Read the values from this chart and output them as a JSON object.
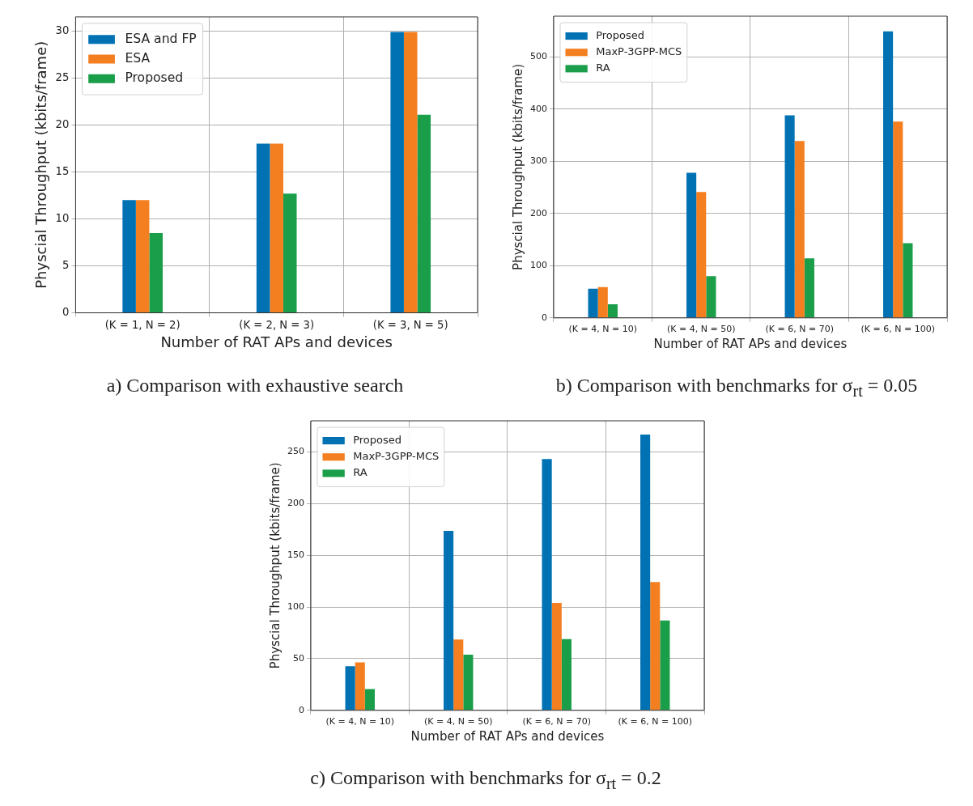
{
  "chart_data": [
    {
      "type": "bar",
      "title": "a) Comparison with exhaustive search",
      "xlabel": "Number of RAT APs and devices",
      "ylabel": "Physcial Throughput (kbits/frame)",
      "categories": [
        "(K = 1, N = 2)",
        "(K = 2, N = 3)",
        "(K = 3, N = 5)"
      ],
      "series": [
        {
          "name": "ESA and FP",
          "color": "#0072b4",
          "values": [
            12,
            18,
            29.9
          ]
        },
        {
          "name": "ESA",
          "color": "#f47f20",
          "values": [
            12,
            18,
            29.9
          ]
        },
        {
          "name": "Proposed",
          "color": "#1a9e4a",
          "values": [
            8.5,
            12.7,
            21.1
          ]
        }
      ],
      "ylim": [
        0,
        31.5
      ],
      "yticks": [
        0,
        5,
        10,
        15,
        20,
        25,
        30
      ],
      "grid": true,
      "legend": "top left"
    },
    {
      "type": "bar",
      "title": "b) Comparison with benchmarks for σ$_{rt}$ = 0.05",
      "xlabel": "Number of RAT APs and devices",
      "ylabel": "Physcial Throughput (kbits/frame)",
      "categories": [
        "(K = 4, N = 10)",
        "(K = 4, N = 50)",
        "(K = 6, N = 70)",
        "(K = 6, N = 100)"
      ],
      "series": [
        {
          "name": "Proposed",
          "color": "#0072b4",
          "values": [
            56,
            278,
            388,
            549
          ]
        },
        {
          "name": "MaxP-3GPP-MCS",
          "color": "#f47f20",
          "values": [
            59,
            241,
            339,
            376
          ]
        },
        {
          "name": "RA",
          "color": "#1a9e4a",
          "values": [
            26,
            80,
            114,
            143
          ]
        }
      ],
      "ylim": [
        0,
        578
      ],
      "yticks": [
        0,
        100,
        200,
        300,
        400,
        500
      ],
      "grid": true,
      "legend": "top left"
    },
    {
      "type": "bar",
      "title": "c) Comparison with benchmarks for σ$_{rt}$ = 0.2",
      "xlabel": "Number of RAT APs and devices",
      "ylabel": "Physcial Throughput (kbits/frame)",
      "categories": [
        "(K = 4, N = 10)",
        "(K = 4, N = 50)",
        "(K = 6, N = 70)",
        "(K = 6, N = 100)"
      ],
      "series": [
        {
          "name": "Proposed",
          "color": "#0072b4",
          "values": [
            42.6,
            173.6,
            243,
            266.7
          ]
        },
        {
          "name": "MaxP-3GPP-MCS",
          "color": "#f47f20",
          "values": [
            46.5,
            68.6,
            104,
            124
          ]
        },
        {
          "name": "RA",
          "color": "#1a9e4a",
          "values": [
            20.6,
            53.8,
            69,
            87
          ]
        }
      ],
      "ylim": [
        0,
        280
      ],
      "yticks": [
        0,
        50,
        100,
        150,
        200,
        250
      ],
      "grid": true,
      "legend": "top left"
    }
  ]
}
